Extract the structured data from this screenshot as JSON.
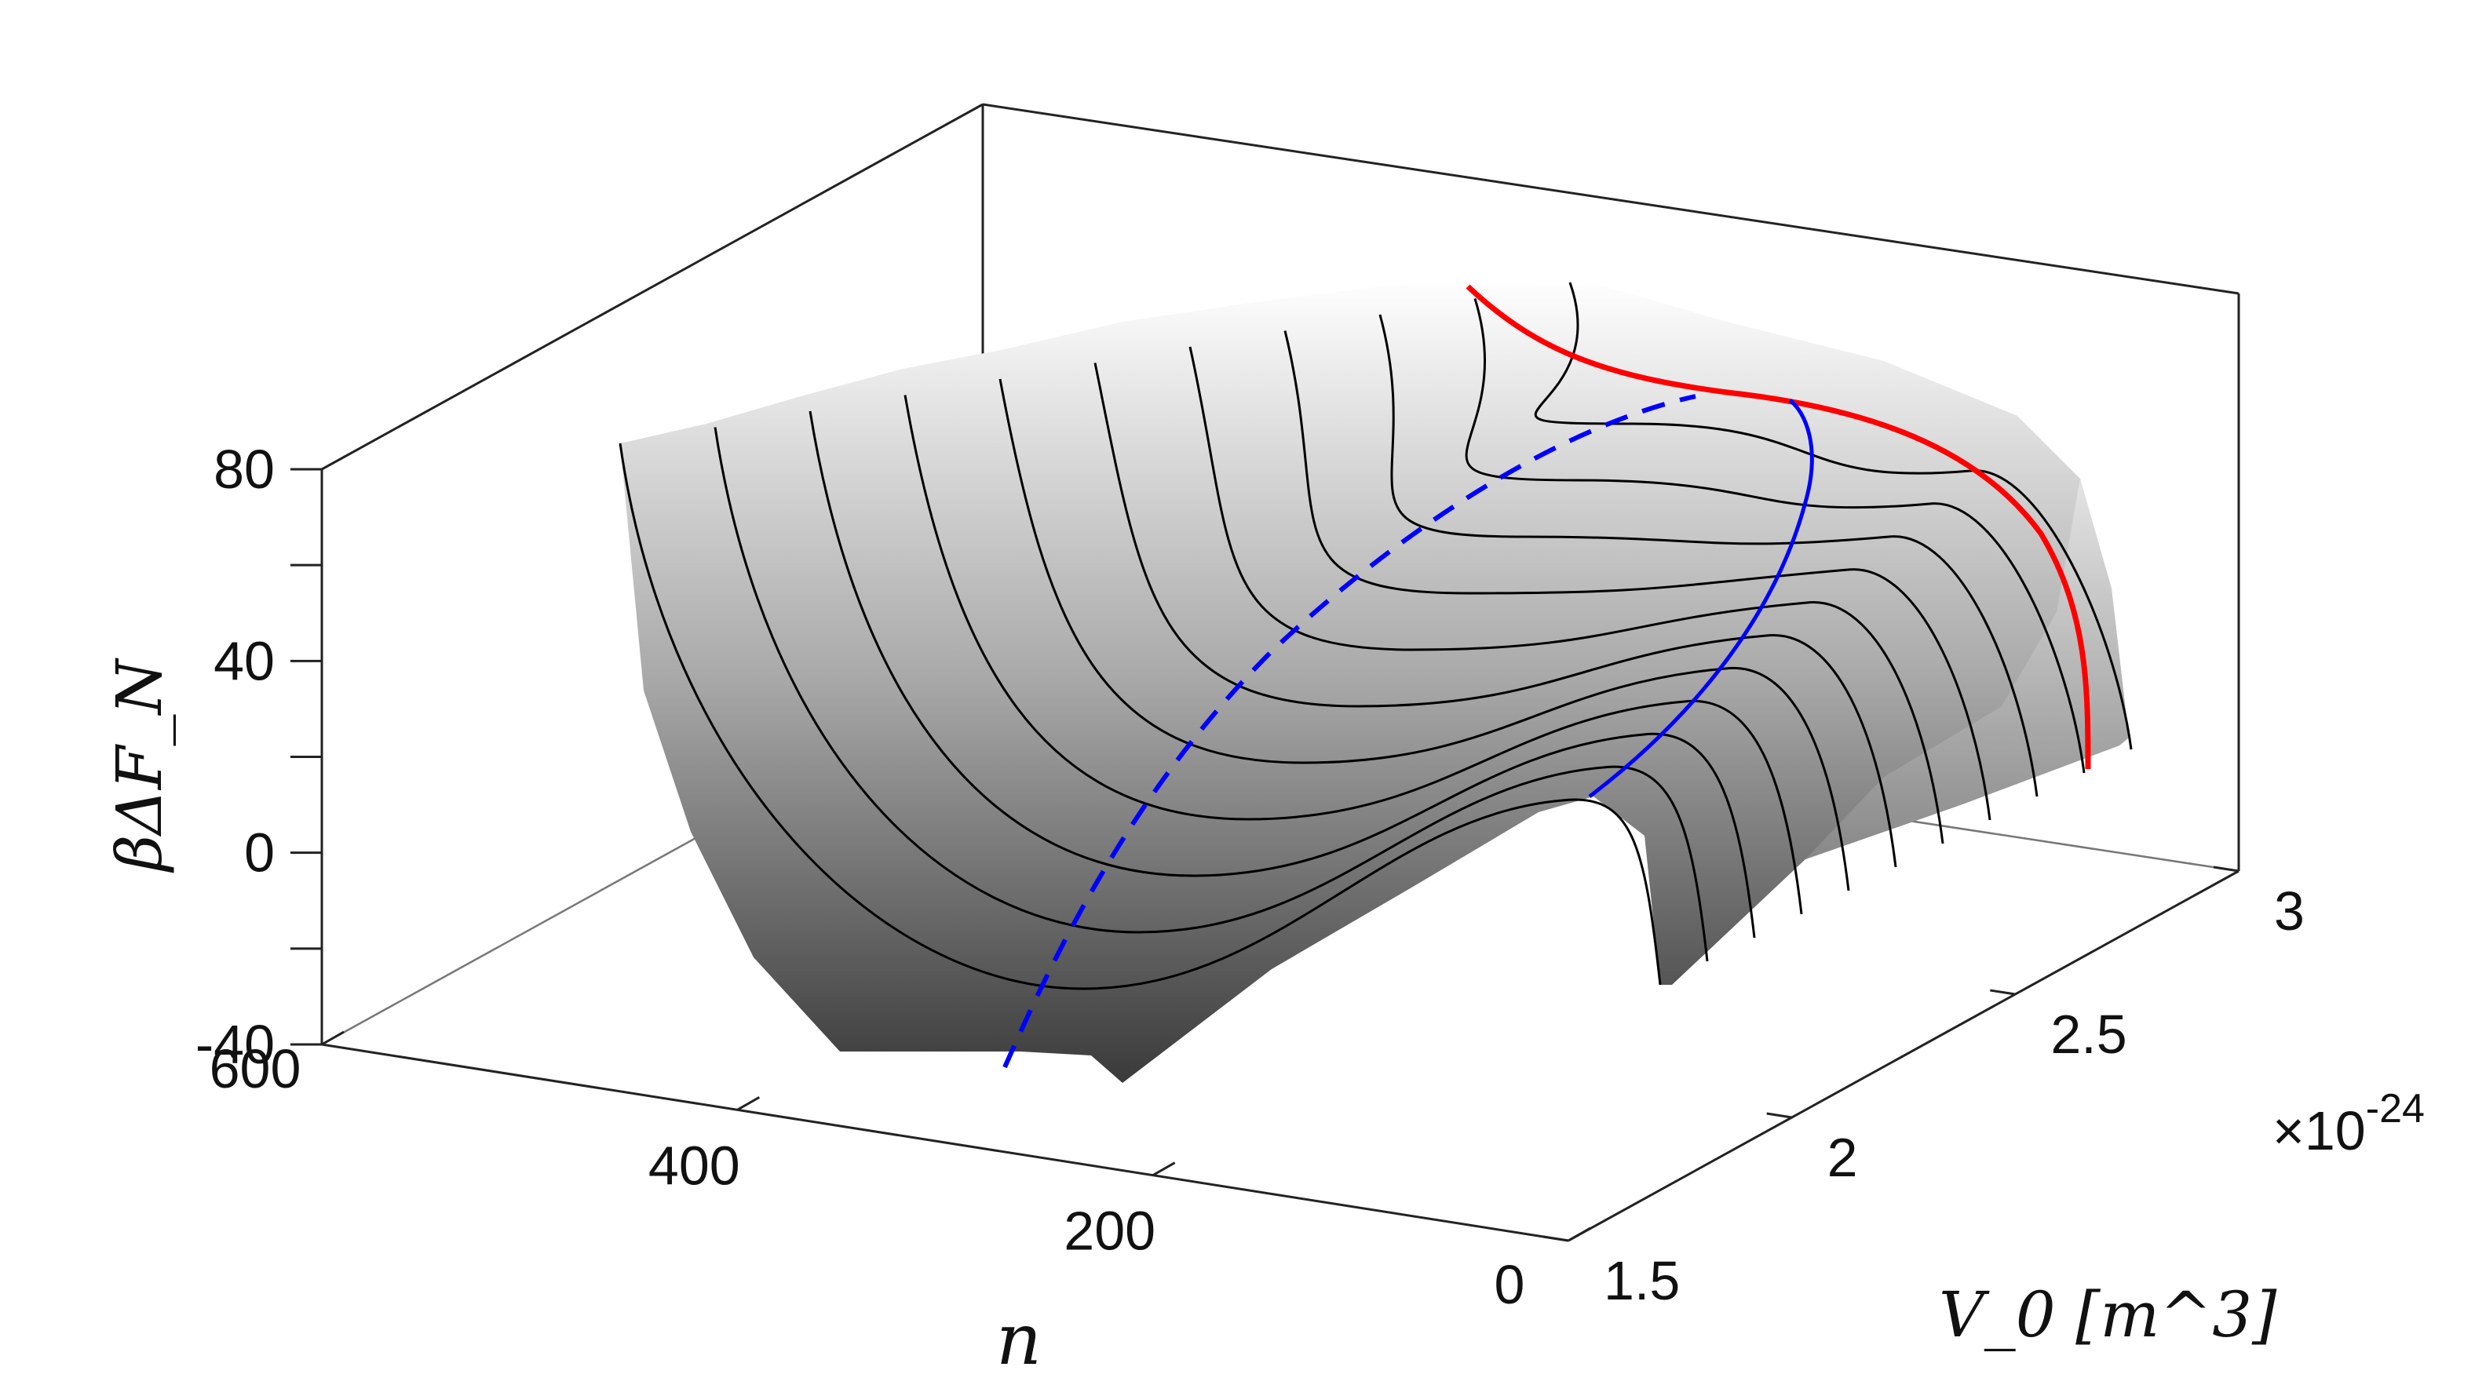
{
  "chart_data": {
    "type": "surface",
    "grid": false,
    "axes": {
      "x": {
        "label": "n",
        "range": [
          0,
          600
        ],
        "ticks": [
          "0",
          "200",
          "400",
          "600"
        ]
      },
      "y": {
        "label": "V_0 [m^3]",
        "range": [
          1.5e-24,
          3e-24
        ],
        "ticks": [
          "1.5",
          "2",
          "2.5",
          "3"
        ],
        "exponent_label": "×10",
        "exponent": "-24"
      },
      "z": {
        "label": "βΔF_N",
        "range": [
          -40,
          80
        ],
        "ticks": [
          "-40",
          "0",
          "40",
          "80"
        ]
      }
    },
    "surface": {
      "colormap": "gray",
      "n_slices": 11,
      "slice_V0_values": [
        1.5,
        1.65,
        1.8,
        1.95,
        2.1,
        2.25,
        2.4,
        2.55,
        2.7,
        2.85,
        3.0
      ],
      "description_values": {
        "at_V0_1.5": [
          [
            600,
            80
          ],
          [
            500,
            20
          ],
          [
            400,
            -20
          ],
          [
            300,
            -38
          ],
          [
            250,
            -35
          ],
          [
            150,
            0
          ],
          [
            60,
            8
          ],
          [
            10,
            -40
          ]
        ]
      }
    },
    "special_curves": [
      {
        "name": "",
        "color": "#ff0000",
        "style": "solid",
        "V0": 2.85
      },
      {
        "name": "",
        "color": "#0000ff",
        "style": "dashed"
      },
      {
        "name": "",
        "color": "#0000ff",
        "style": "solid"
      }
    ],
    "colors": {
      "surface_dark": "#3a3a3a",
      "surface_light": "#f2f2f2",
      "red_curve": "#ff0000",
      "blue_curve": "#0000ff",
      "slice_lines": "#000000"
    }
  }
}
